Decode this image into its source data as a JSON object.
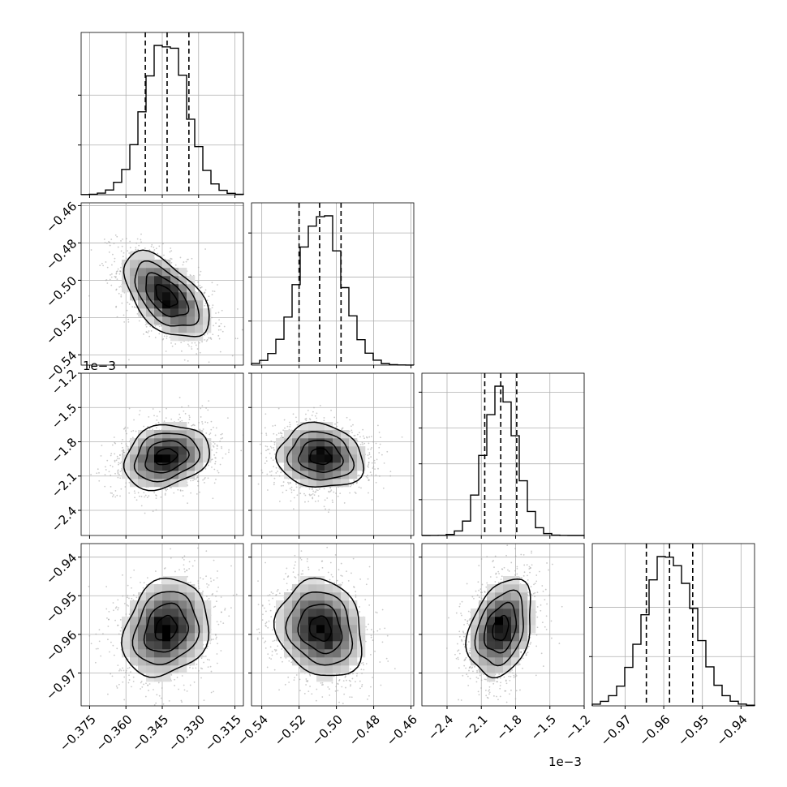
{
  "chart_data": {
    "type": "corner",
    "title": "",
    "colors": {
      "line": "#000000",
      "grid": "#b0b0b0",
      "points": "#9e9e9e",
      "density_dark": "#000000"
    },
    "grid": true,
    "parameters": [
      {
        "range": [
          -0.3785,
          -0.3115
        ],
        "ticks": [
          -0.375,
          -0.36,
          -0.345,
          -0.33,
          -0.315
        ],
        "tick_labels": [
          "−0.375",
          "−0.360",
          "−0.345",
          "−0.330",
          "−0.315"
        ],
        "offset_text": "",
        "mean": -0.3435,
        "sd": 0.0088,
        "quantiles": [
          -0.352,
          -0.343,
          -0.334
        ],
        "hist_ymax": 1.0,
        "hist_yticks": [
          0.333,
          0.667
        ]
      },
      {
        "range": [
          -0.5455,
          -0.4585
        ],
        "ticks": [
          -0.54,
          -0.52,
          -0.5,
          -0.48,
          -0.46
        ],
        "tick_labels": [
          "−0.54",
          "−0.52",
          "−0.50",
          "−0.48",
          "−0.46"
        ],
        "offset_text": "",
        "mean": -0.5085,
        "sd": 0.0115,
        "quantiles": [
          -0.52,
          -0.509,
          -0.4975
        ],
        "hist_ymax": 1.0,
        "hist_yticks": [
          0.295,
          0.59,
          0.885
        ]
      },
      {
        "range": [
          -2.62,
          -1.2
        ],
        "ticks": [
          -2.4,
          -2.1,
          -1.8,
          -1.5,
          -1.2
        ],
        "tick_labels": [
          "−2.4",
          "−2.1",
          "−1.8",
          "−1.5",
          "−1.2"
        ],
        "offset_text": "1e−3",
        "mean": -1.93,
        "sd": 0.14,
        "quantiles": [
          -2.07,
          -1.93,
          -1.79
        ],
        "hist_ymax": 1.0,
        "hist_yticks": [
          0.24,
          0.48,
          0.72,
          0.96
        ]
      },
      {
        "range": [
          -0.9785,
          -0.9365
        ],
        "ticks": [
          -0.97,
          -0.96,
          -0.95,
          -0.94
        ],
        "tick_labels": [
          "−0.97",
          "−0.96",
          "−0.95",
          "−0.94"
        ],
        "offset_text": "",
        "mean": -0.9585,
        "sd": 0.0063,
        "quantiles": [
          -0.9645,
          -0.9585,
          -0.9525
        ],
        "hist_ymax": 1.0,
        "hist_yticks": [
          0.33,
          0.66
        ]
      }
    ],
    "correlations": [
      [
        1.0,
        -0.55,
        0.22,
        0.18
      ],
      [
        -0.55,
        1.0,
        -0.1,
        -0.15
      ],
      [
        0.22,
        -0.1,
        1.0,
        0.3
      ],
      [
        0.18,
        -0.15,
        0.3,
        1.0
      ]
    ],
    "contour_levels_sigma": [
      0.5,
      1.0,
      1.5,
      2.0
    ]
  }
}
